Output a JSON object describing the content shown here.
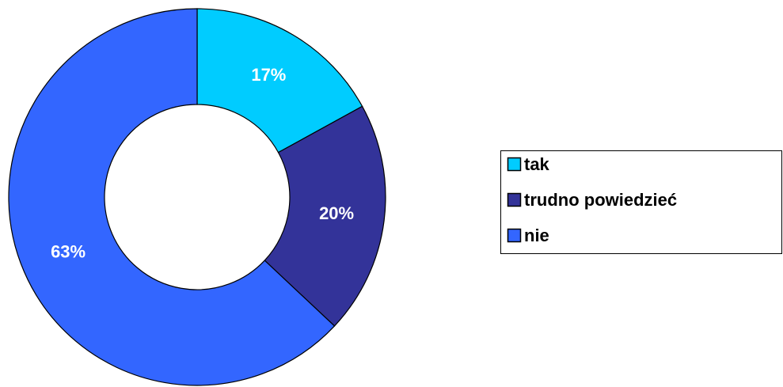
{
  "chart_data": {
    "type": "donut",
    "categories": [
      "tak",
      "trudno powiedzieć",
      "nie"
    ],
    "values": [
      17,
      20,
      63
    ],
    "value_labels": [
      "17%",
      "20%",
      "63%"
    ],
    "colors": [
      "#00ccff",
      "#333399",
      "#3366ff"
    ],
    "legend": "right"
  }
}
